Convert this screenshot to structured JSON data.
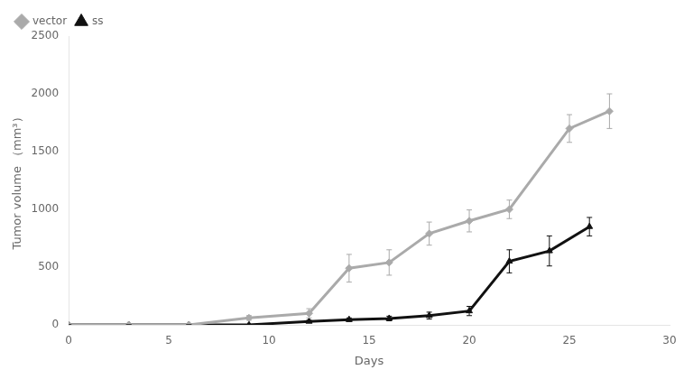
{
  "chart_data": {
    "type": "line",
    "xlabel": "Days",
    "ylabel": "Tumor volume （mm³）",
    "xlim": [
      0,
      30
    ],
    "xticks": [
      0,
      5,
      10,
      15,
      20,
      25,
      30
    ],
    "ylim": [
      0,
      2500
    ],
    "yticks": [
      0,
      500,
      1000,
      1500,
      2000,
      2500
    ],
    "grid": false,
    "legend": "upper left",
    "series": [
      {
        "name": "vector",
        "color": "#aaaaaa",
        "marker": "diamond",
        "x": [
          0,
          3,
          6,
          9,
          12,
          14,
          16,
          18,
          20,
          22,
          25,
          27
        ],
        "values": [
          0,
          0,
          0,
          60,
          100,
          490,
          540,
          790,
          900,
          1000,
          1700,
          1850
        ],
        "yerr": [
          0,
          0,
          0,
          20,
          40,
          120,
          110,
          100,
          95,
          80,
          120,
          150
        ]
      },
      {
        "name": "ss",
        "color": "#111111",
        "marker": "triangle",
        "x": [
          0,
          3,
          6,
          9,
          12,
          14,
          16,
          18,
          20,
          22,
          24,
          26
        ],
        "values": [
          0,
          0,
          0,
          0,
          30,
          45,
          55,
          80,
          120,
          550,
          640,
          850
        ],
        "yerr": [
          0,
          0,
          0,
          0,
          10,
          15,
          20,
          30,
          40,
          100,
          130,
          80
        ]
      }
    ]
  }
}
